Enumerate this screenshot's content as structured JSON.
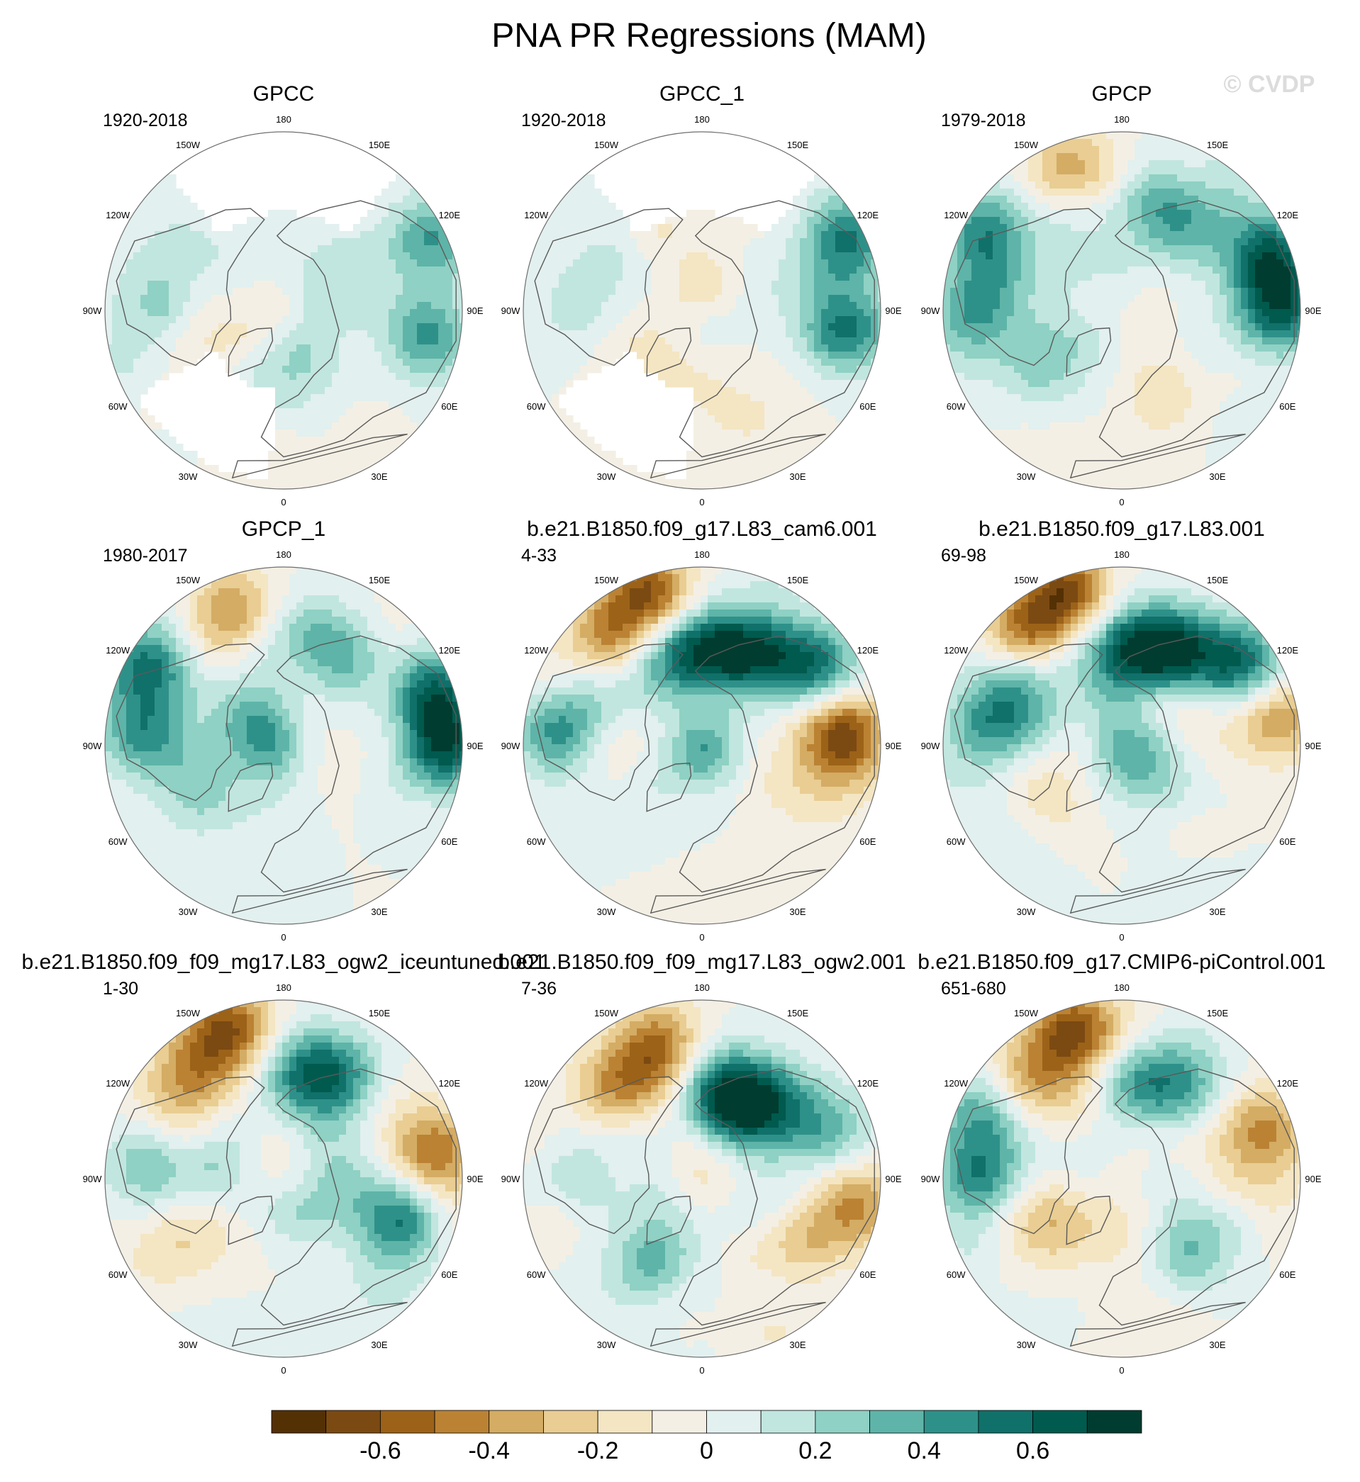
{
  "figure": {
    "title": "PNA PR Regressions (MAM)",
    "watermark": "© CVDP"
  },
  "colors": {
    "coast": "#5a5a5a",
    "rim": "#6e6e6e",
    "missing": "#ffffff"
  },
  "chart_data": {
    "type": "heatmap",
    "projection": "north-polar-stereographic",
    "variable": "PR regression on PNA index",
    "longitude_labels": [
      "180",
      "150E",
      "120E",
      "90E",
      "60E",
      "30E",
      "0",
      "30W",
      "60W",
      "90W",
      "120W",
      "150W"
    ],
    "colorbar": {
      "levels": [
        -0.7,
        -0.6,
        -0.5,
        -0.4,
        -0.3,
        -0.2,
        -0.1,
        0,
        0.1,
        0.2,
        0.3,
        0.4,
        0.5,
        0.6,
        0.7
      ],
      "tick_labels": [
        "-0.6",
        "-0.4",
        "-0.2",
        "0",
        "0.2",
        "0.4",
        "0.6"
      ],
      "colors": [
        "#543005",
        "#7b4a12",
        "#9c6218",
        "#bb8233",
        "#d4ac64",
        "#e9cd92",
        "#f4e6c3",
        "#f4efe4",
        "#e2f0ef",
        "#c1e6df",
        "#8fd1c4",
        "#5eb4a8",
        "#2e9189",
        "#10706a",
        "#005a4e",
        "#003c30"
      ]
    },
    "panels": [
      {
        "title": "GPCC",
        "period": "1920-2018",
        "land_only": true,
        "blobs": [
          [
            80,
            0.82,
            0.4
          ],
          [
            115,
            0.93,
            0.5
          ],
          [
            270,
            0.7,
            0.15
          ],
          [
            240,
            0.6,
            0.15
          ]
        ]
      },
      {
        "title": "GPCC_1",
        "period": "1920-2018",
        "land_only": true,
        "blobs": [
          [
            82,
            0.82,
            0.4
          ],
          [
            117,
            0.93,
            0.48
          ],
          [
            270,
            0.7,
            0.15
          ],
          [
            240,
            0.6,
            0.12
          ]
        ]
      },
      {
        "title": "GPCP",
        "period": "1979-2018",
        "land_only": false,
        "blobs": [
          [
            200,
            0.85,
            -0.35
          ],
          [
            165,
            0.6,
            0.3
          ],
          [
            140,
            0.62,
            0.28
          ],
          [
            110,
            0.88,
            0.6
          ],
          [
            90,
            0.9,
            0.55
          ],
          [
            270,
            0.8,
            0.4
          ],
          [
            240,
            0.88,
            0.45
          ],
          [
            300,
            0.55,
            0.25
          ],
          [
            60,
            0.5,
            0.1
          ],
          [
            30,
            0.55,
            -0.1
          ]
        ]
      },
      {
        "title": "GPCP_1",
        "period": "1980-2017",
        "land_only": false,
        "blobs": [
          [
            200,
            0.82,
            -0.4
          ],
          [
            165,
            0.62,
            0.3
          ],
          [
            140,
            0.6,
            0.28
          ],
          [
            110,
            0.88,
            0.6
          ],
          [
            90,
            0.9,
            0.55
          ],
          [
            265,
            0.8,
            0.4
          ],
          [
            240,
            0.88,
            0.45
          ],
          [
            300,
            0.55,
            0.2
          ],
          [
            170,
            0.45,
            -0.1
          ]
        ]
      },
      {
        "title": "b.e21.B1850.f09_g17.L83_cam6.001",
        "period": "4-33",
        "land_only": false,
        "blobs": [
          [
            200,
            0.9,
            -0.55
          ],
          [
            220,
            0.8,
            -0.4
          ],
          [
            175,
            0.55,
            0.55
          ],
          [
            150,
            0.6,
            0.6
          ],
          [
            125,
            0.78,
            0.55
          ],
          [
            95,
            0.8,
            -0.55
          ],
          [
            265,
            0.8,
            0.45
          ],
          [
            240,
            0.65,
            0.2
          ],
          [
            200,
            0.5,
            0.3
          ]
        ]
      },
      {
        "title": "b.e21.B1850.f09_g17.L83.001",
        "period": "69-98",
        "land_only": false,
        "blobs": [
          [
            200,
            0.92,
            -0.65
          ],
          [
            220,
            0.82,
            -0.5
          ],
          [
            175,
            0.55,
            0.55
          ],
          [
            150,
            0.6,
            0.65
          ],
          [
            125,
            0.8,
            0.6
          ],
          [
            100,
            0.88,
            -0.4
          ],
          [
            260,
            0.75,
            0.4
          ],
          [
            235,
            0.7,
            0.35
          ],
          [
            300,
            0.45,
            -0.2
          ]
        ]
      },
      {
        "title": "b.e21.B1850.f09_f09_mg17.L83_ogw2_iceuntuned.001",
        "period": "1-30",
        "land_only": false,
        "blobs": [
          [
            200,
            0.9,
            -0.55
          ],
          [
            220,
            0.8,
            -0.4
          ],
          [
            170,
            0.6,
            0.45
          ],
          [
            150,
            0.65,
            0.4
          ],
          [
            100,
            0.85,
            -0.5
          ],
          [
            70,
            0.7,
            0.45
          ],
          [
            265,
            0.75,
            0.3
          ],
          [
            300,
            0.6,
            -0.2
          ]
        ]
      },
      {
        "title": "b.e21.B1850.f09_f09_mg17.L83_ogw2.001",
        "period": "7-36",
        "land_only": false,
        "blobs": [
          [
            200,
            0.75,
            -0.5
          ],
          [
            225,
            0.7,
            -0.4
          ],
          [
            170,
            0.5,
            0.6
          ],
          [
            140,
            0.55,
            0.55
          ],
          [
            110,
            0.75,
            0.4
          ],
          [
            60,
            0.65,
            -0.3
          ],
          [
            330,
            0.55,
            0.35
          ],
          [
            270,
            0.75,
            0.2
          ],
          [
            80,
            0.9,
            -0.3
          ]
        ]
      },
      {
        "title": "b.e21.B1850.f09_g17.CMIP6-piControl.001",
        "period": "651-680",
        "land_only": false,
        "blobs": [
          [
            200,
            0.85,
            -0.6
          ],
          [
            225,
            0.75,
            -0.35
          ],
          [
            170,
            0.55,
            0.4
          ],
          [
            145,
            0.6,
            0.35
          ],
          [
            110,
            0.85,
            -0.45
          ],
          [
            270,
            0.8,
            0.45
          ],
          [
            245,
            0.85,
            0.4
          ],
          [
            300,
            0.5,
            -0.3
          ],
          [
            45,
            0.55,
            0.3
          ]
        ]
      }
    ]
  }
}
